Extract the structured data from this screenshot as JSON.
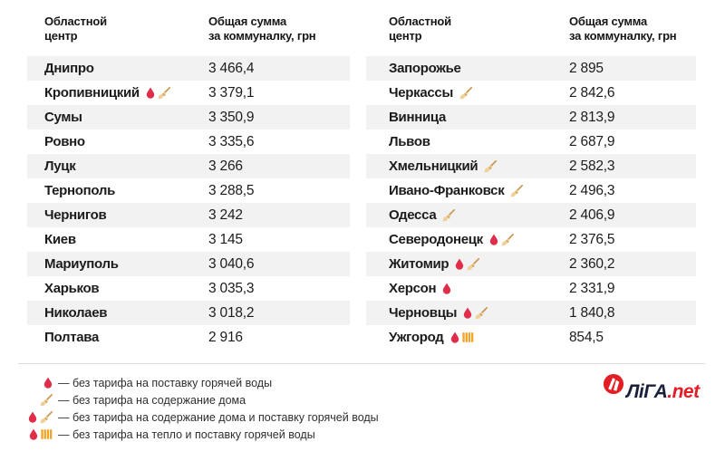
{
  "tables": [
    {
      "header": {
        "city_l1": "Областной",
        "city_l2": "центр",
        "sum_l1": "Общая сумма",
        "sum_l2": "за коммуналку, грн"
      },
      "rows": [
        {
          "city": "Днипро",
          "icons": [],
          "value": "3 466,4"
        },
        {
          "city": "Кропивницкий",
          "icons": [
            "drop",
            "broom"
          ],
          "value": "3 379,1"
        },
        {
          "city": "Сумы",
          "icons": [],
          "value": "3 350,9"
        },
        {
          "city": "Ровно",
          "icons": [],
          "value": "3 335,6"
        },
        {
          "city": "Луцк",
          "icons": [],
          "value": "3 266"
        },
        {
          "city": "Тернополь",
          "icons": [],
          "value": "3 288,5"
        },
        {
          "city": "Чернигов",
          "icons": [],
          "value": "3 242"
        },
        {
          "city": "Киев",
          "icons": [],
          "value": "3 145"
        },
        {
          "city": "Мариуполь",
          "icons": [],
          "value": "3 040,6"
        },
        {
          "city": "Харьков",
          "icons": [],
          "value": "3 035,3"
        },
        {
          "city": "Николаев",
          "icons": [],
          "value": "3 018,2"
        },
        {
          "city": "Полтава",
          "icons": [],
          "value": "2 916"
        }
      ]
    },
    {
      "header": {
        "city_l1": "Областной",
        "city_l2": "центр",
        "sum_l1": "Общая сумма",
        "sum_l2": "за коммуналку, грн"
      },
      "rows": [
        {
          "city": "Запорожье",
          "icons": [],
          "value": "2 895"
        },
        {
          "city": "Черкассы",
          "icons": [
            "broom"
          ],
          "value": "2 842,6"
        },
        {
          "city": "Винница",
          "icons": [],
          "value": "2 813,9"
        },
        {
          "city": "Львов",
          "icons": [],
          "value": "2 687,9"
        },
        {
          "city": "Хмельницкий",
          "icons": [
            "broom"
          ],
          "value": "2 582,3"
        },
        {
          "city": "Ивано-Франковск",
          "icons": [
            "broom"
          ],
          "value": "2 496,3"
        },
        {
          "city": "Одесса",
          "icons": [
            "broom"
          ],
          "value": "2 406,9"
        },
        {
          "city": "Северодонецк",
          "icons": [
            "drop",
            "broom"
          ],
          "value": "2 376,5"
        },
        {
          "city": "Житомир",
          "icons": [
            "drop",
            "broom"
          ],
          "value": "2 360,2"
        },
        {
          "city": "Херсон",
          "icons": [
            "drop"
          ],
          "value": "2 331,9"
        },
        {
          "city": "Черновцы",
          "icons": [
            "drop",
            "broom"
          ],
          "value": "1 840,8"
        },
        {
          "city": "Ужгород",
          "icons": [
            "drop",
            "radiator"
          ],
          "value": "854,5"
        }
      ]
    }
  ],
  "legend": [
    {
      "icons": [
        "drop"
      ],
      "text": "— без тарифа на поставку горячей воды"
    },
    {
      "icons": [
        "broom"
      ],
      "text": "— без тарифа на содержание дома"
    },
    {
      "icons": [
        "drop",
        "broom"
      ],
      "text": "— без тарифа на содержание дома и поставку горячей воды"
    },
    {
      "icons": [
        "drop",
        "radiator"
      ],
      "text": "— без тарифа на тепло и поставку горячей воды"
    }
  ],
  "logo": {
    "brand": "ЛіГА",
    "suffix": ".net"
  },
  "colors": {
    "drop": "#e02d4a",
    "broom_handle": "#c9924a",
    "broom_brush": "#eed098",
    "radiator": "#f0a428",
    "row_stripe": "#f2f2f2",
    "logo_navy": "#19213d",
    "logo_red": "#e31e24"
  }
}
